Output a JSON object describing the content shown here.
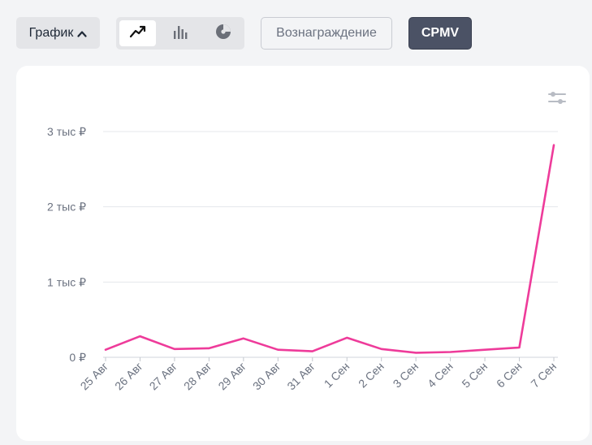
{
  "toolbar": {
    "graph_label": "График",
    "view_modes": [
      {
        "name": "line-chart-icon",
        "active": true
      },
      {
        "name": "bar-chart-icon",
        "active": false
      },
      {
        "name": "pie-chart-icon",
        "active": false
      }
    ],
    "reward_label": "Вознаграждение",
    "cpmv_label": "CPMV"
  },
  "colors": {
    "series": "#ee3b9a",
    "active_button": "#4b5265",
    "grid": "#e5e7eb"
  },
  "chart_data": {
    "type": "line",
    "title": "",
    "xlabel": "",
    "ylabel": "",
    "categories": [
      "25 Авг",
      "26 Авг",
      "27 Авг",
      "28 Авг",
      "29 Авг",
      "30 Авг",
      "31 Авг",
      "1 Сен",
      "2 Сен",
      "3 Сен",
      "4 Сен",
      "5 Сен",
      "6 Сен",
      "7 Сен"
    ],
    "series": [
      {
        "values": [
          100,
          280,
          110,
          120,
          250,
          100,
          80,
          260,
          110,
          60,
          70,
          100,
          130,
          2820
        ]
      }
    ],
    "ylim": [
      0,
      3000
    ],
    "yticks": [
      {
        "value": 0,
        "label": "0 ₽"
      },
      {
        "value": 1000,
        "label": "1 тыс ₽"
      },
      {
        "value": 2000,
        "label": "2 тыс ₽"
      },
      {
        "value": 3000,
        "label": "3 тыс ₽"
      }
    ],
    "grid": true,
    "legend": "none"
  }
}
